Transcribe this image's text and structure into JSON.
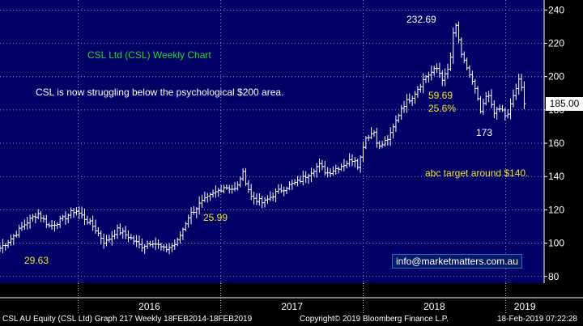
{
  "chart_data": {
    "type": "candlestick",
    "ylim": [
      76,
      246
    ],
    "y_ticks": [
      80,
      100,
      120,
      140,
      160,
      180,
      200,
      220,
      240
    ],
    "x_ticks": [
      "2016",
      "2017",
      "2018",
      "2019"
    ],
    "x_tick_dates": [
      "2016-01-01",
      "2017-01-01",
      "2018-01-01",
      "2019-01-01"
    ],
    "x_range": [
      "2015-06-15",
      "2019-04-10"
    ],
    "grid": true,
    "colors": {
      "background": "#000066",
      "grid": "#ffffff",
      "candles": "#ffffff"
    },
    "weekly_close_keypoints": [
      {
        "date": "2015-06-15",
        "value": 97
      },
      {
        "date": "2015-07-10",
        "value": 102
      },
      {
        "date": "2015-08-20",
        "value": 112
      },
      {
        "date": "2015-09-20",
        "value": 118
      },
      {
        "date": "2015-10-20",
        "value": 110
      },
      {
        "date": "2015-11-20",
        "value": 114
      },
      {
        "date": "2015-12-25",
        "value": 120
      },
      {
        "date": "2016-02-10",
        "value": 110
      },
      {
        "date": "2016-03-10",
        "value": 100
      },
      {
        "date": "2016-04-10",
        "value": 108
      },
      {
        "date": "2016-05-10",
        "value": 104
      },
      {
        "date": "2016-06-10",
        "value": 98
      },
      {
        "date": "2016-07-10",
        "value": 101
      },
      {
        "date": "2016-08-10",
        "value": 96
      },
      {
        "date": "2016-09-10",
        "value": 100
      },
      {
        "date": "2016-10-10",
        "value": 116
      },
      {
        "date": "2016-11-10",
        "value": 124
      },
      {
        "date": "2016-12-10",
        "value": 129
      },
      {
        "date": "2017-01-10",
        "value": 134
      },
      {
        "date": "2017-02-10",
        "value": 132
      },
      {
        "date": "2017-02-25",
        "value": 143
      },
      {
        "date": "2017-03-20",
        "value": 128
      },
      {
        "date": "2017-04-20",
        "value": 124
      },
      {
        "date": "2017-05-20",
        "value": 130
      },
      {
        "date": "2017-06-20",
        "value": 134
      },
      {
        "date": "2017-07-20",
        "value": 137
      },
      {
        "date": "2017-08-20",
        "value": 143
      },
      {
        "date": "2017-09-10",
        "value": 147
      },
      {
        "date": "2017-09-30",
        "value": 142
      },
      {
        "date": "2017-11-10",
        "value": 147
      },
      {
        "date": "2017-12-10",
        "value": 151
      },
      {
        "date": "2017-12-20",
        "value": 146
      },
      {
        "date": "2018-01-05",
        "value": 163
      },
      {
        "date": "2018-01-30",
        "value": 167
      },
      {
        "date": "2018-02-10",
        "value": 157
      },
      {
        "date": "2018-03-10",
        "value": 164
      },
      {
        "date": "2018-04-10",
        "value": 182
      },
      {
        "date": "2018-05-10",
        "value": 189
      },
      {
        "date": "2018-06-10",
        "value": 200
      },
      {
        "date": "2018-07-10",
        "value": 205
      },
      {
        "date": "2018-07-25",
        "value": 198
      },
      {
        "date": "2018-08-10",
        "value": 206
      },
      {
        "date": "2018-08-20",
        "value": 225
      },
      {
        "date": "2018-08-28",
        "value": 231
      },
      {
        "date": "2018-09-10",
        "value": 212
      },
      {
        "date": "2018-09-25",
        "value": 205
      },
      {
        "date": "2018-10-15",
        "value": 192
      },
      {
        "date": "2018-10-30",
        "value": 178
      },
      {
        "date": "2018-11-15",
        "value": 190
      },
      {
        "date": "2018-12-05",
        "value": 178
      },
      {
        "date": "2018-12-20",
        "value": 181
      },
      {
        "date": "2019-01-05",
        "value": 175
      },
      {
        "date": "2019-01-20",
        "value": 188
      },
      {
        "date": "2019-02-05",
        "value": 198
      },
      {
        "date": "2019-02-12",
        "value": 192
      },
      {
        "date": "2019-02-18",
        "value": 185
      }
    ],
    "annotations": {
      "title": "CSL Ltd (CSL) Weekly Chart",
      "comment": "CSL is now struggling below the psychological $200 area.",
      "peak": "232.69",
      "drop_amount": "59.69",
      "drop_pct": "25.6%",
      "low_2019": "173",
      "low_2016": "29.63",
      "low_2017": "25.99",
      "target": "abc target around $140.",
      "last_price": "185.00",
      "email": "info@marketmatters.com.au"
    }
  },
  "footer": {
    "security": "CSL AU Equity (CSL Ltd) Graph 217  Weekly 18FEB2014-18FEB2019",
    "copyright": "Copyright© 2019 Bloomberg Finance L.P.",
    "timestamp": "18-Feb-2019 07:22:28"
  }
}
